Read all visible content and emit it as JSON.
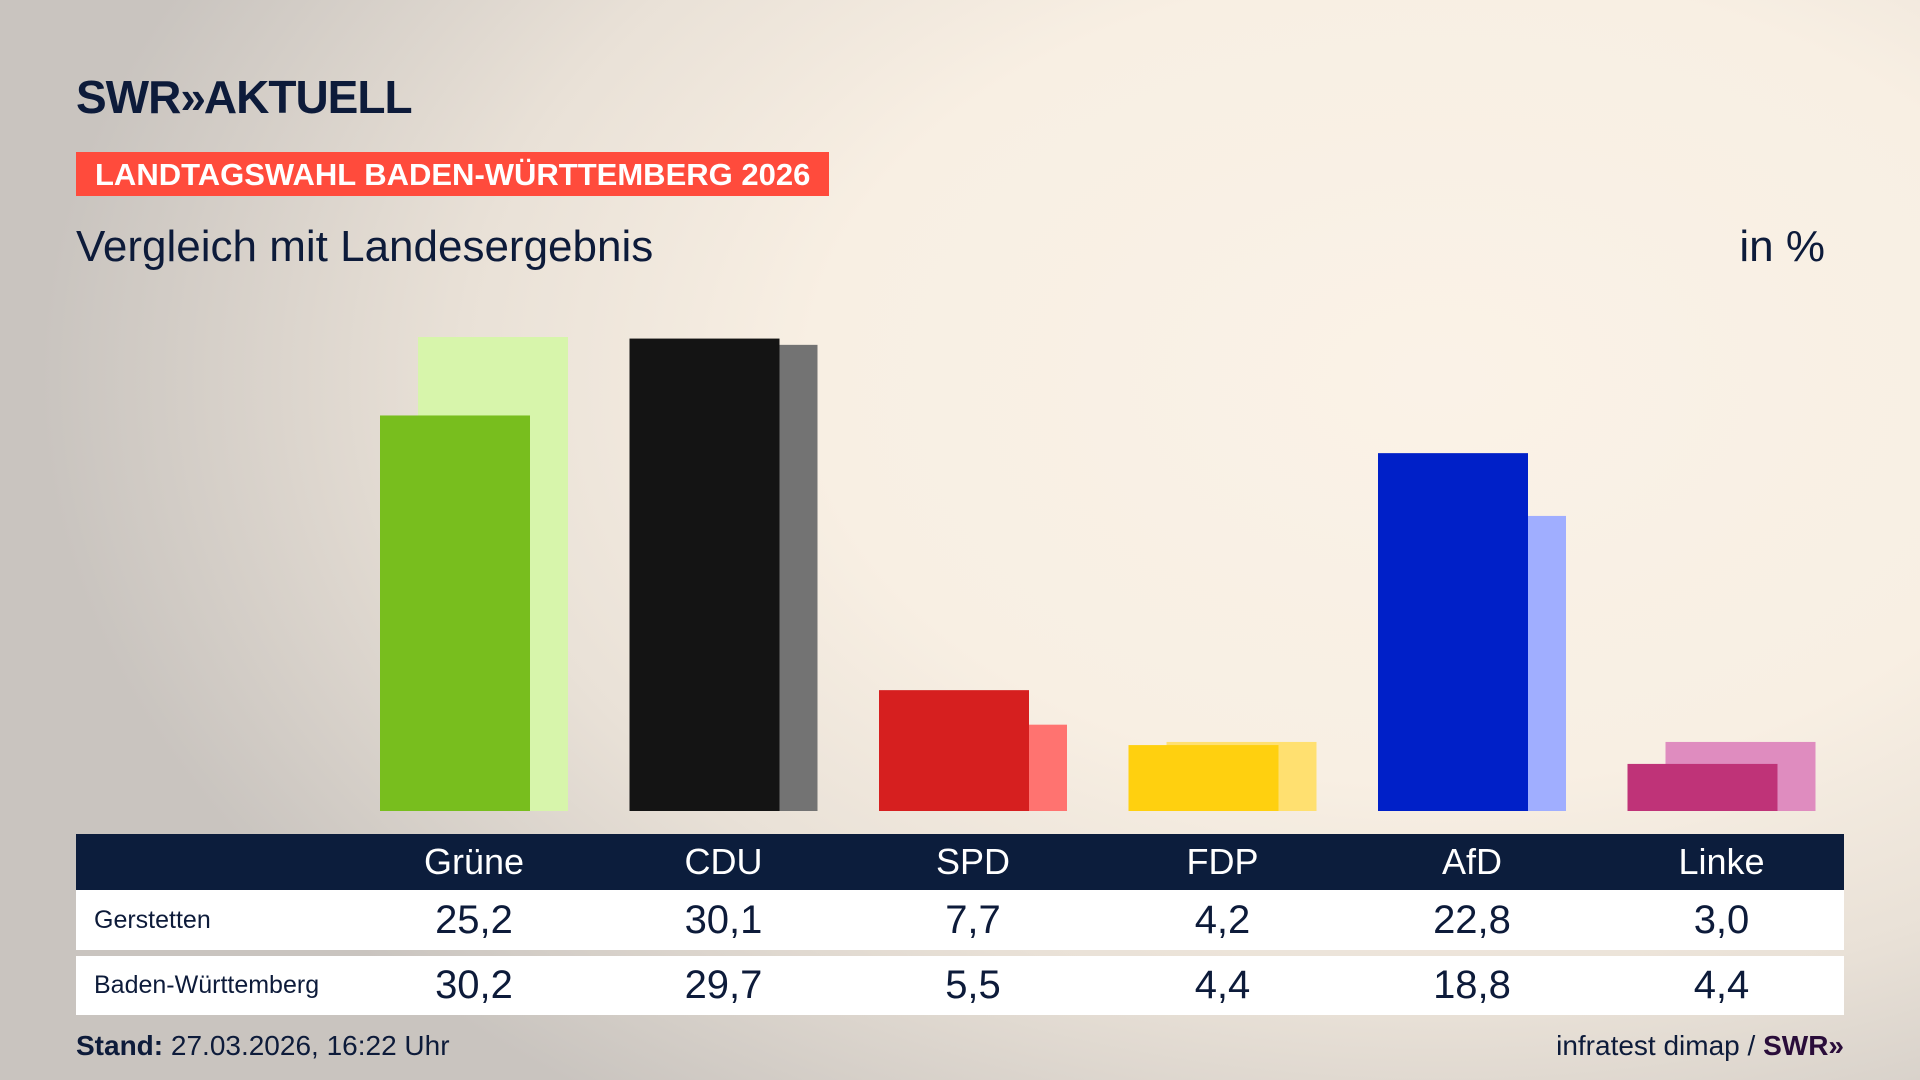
{
  "header": {
    "logo_text": "SWR",
    "logo_chevrons": "»",
    "logo_suffix": "AKTUELL",
    "banner": "LANDTAGSWAHL BADEN-WÜRTTEMBERG 2026",
    "subtitle": "Vergleich mit Landesergebnis",
    "unit": "in %"
  },
  "chart_data": {
    "type": "bar",
    "title": "Vergleich mit Landesergebnis",
    "ylabel": "in %",
    "ylim": [
      0,
      30.2
    ],
    "categories": [
      "Grüne",
      "CDU",
      "SPD",
      "FDP",
      "AfD",
      "Linke"
    ],
    "series": [
      {
        "name": "Gerstetten",
        "values": [
          25.2,
          30.1,
          7.7,
          4.2,
          22.8,
          3.0
        ],
        "display": [
          "25,2",
          "30,1",
          "7,7",
          "4,2",
          "22,8",
          "3,0"
        ],
        "colors": [
          "#78be1e",
          "#141414",
          "#d61f1f",
          "#ffd00f",
          "#0020c8",
          "#bf3378"
        ]
      },
      {
        "name": "Baden-Württemberg",
        "values": [
          30.2,
          29.7,
          5.5,
          4.4,
          18.8,
          4.4
        ],
        "display": [
          "30,2",
          "29,7",
          "5,5",
          "4,4",
          "18,8",
          "4,4"
        ],
        "colors": [
          "#d7f5ab",
          "#737373",
          "#ff7370",
          "#ffe070",
          "#a0aeff",
          "#df8cbf"
        ]
      }
    ],
    "grid": false
  },
  "footer": {
    "stand_label": "Stand:",
    "stand_value": "27.03.2026, 16:22 Uhr",
    "source": "infratest dimap /",
    "source_logo": "SWR»"
  }
}
